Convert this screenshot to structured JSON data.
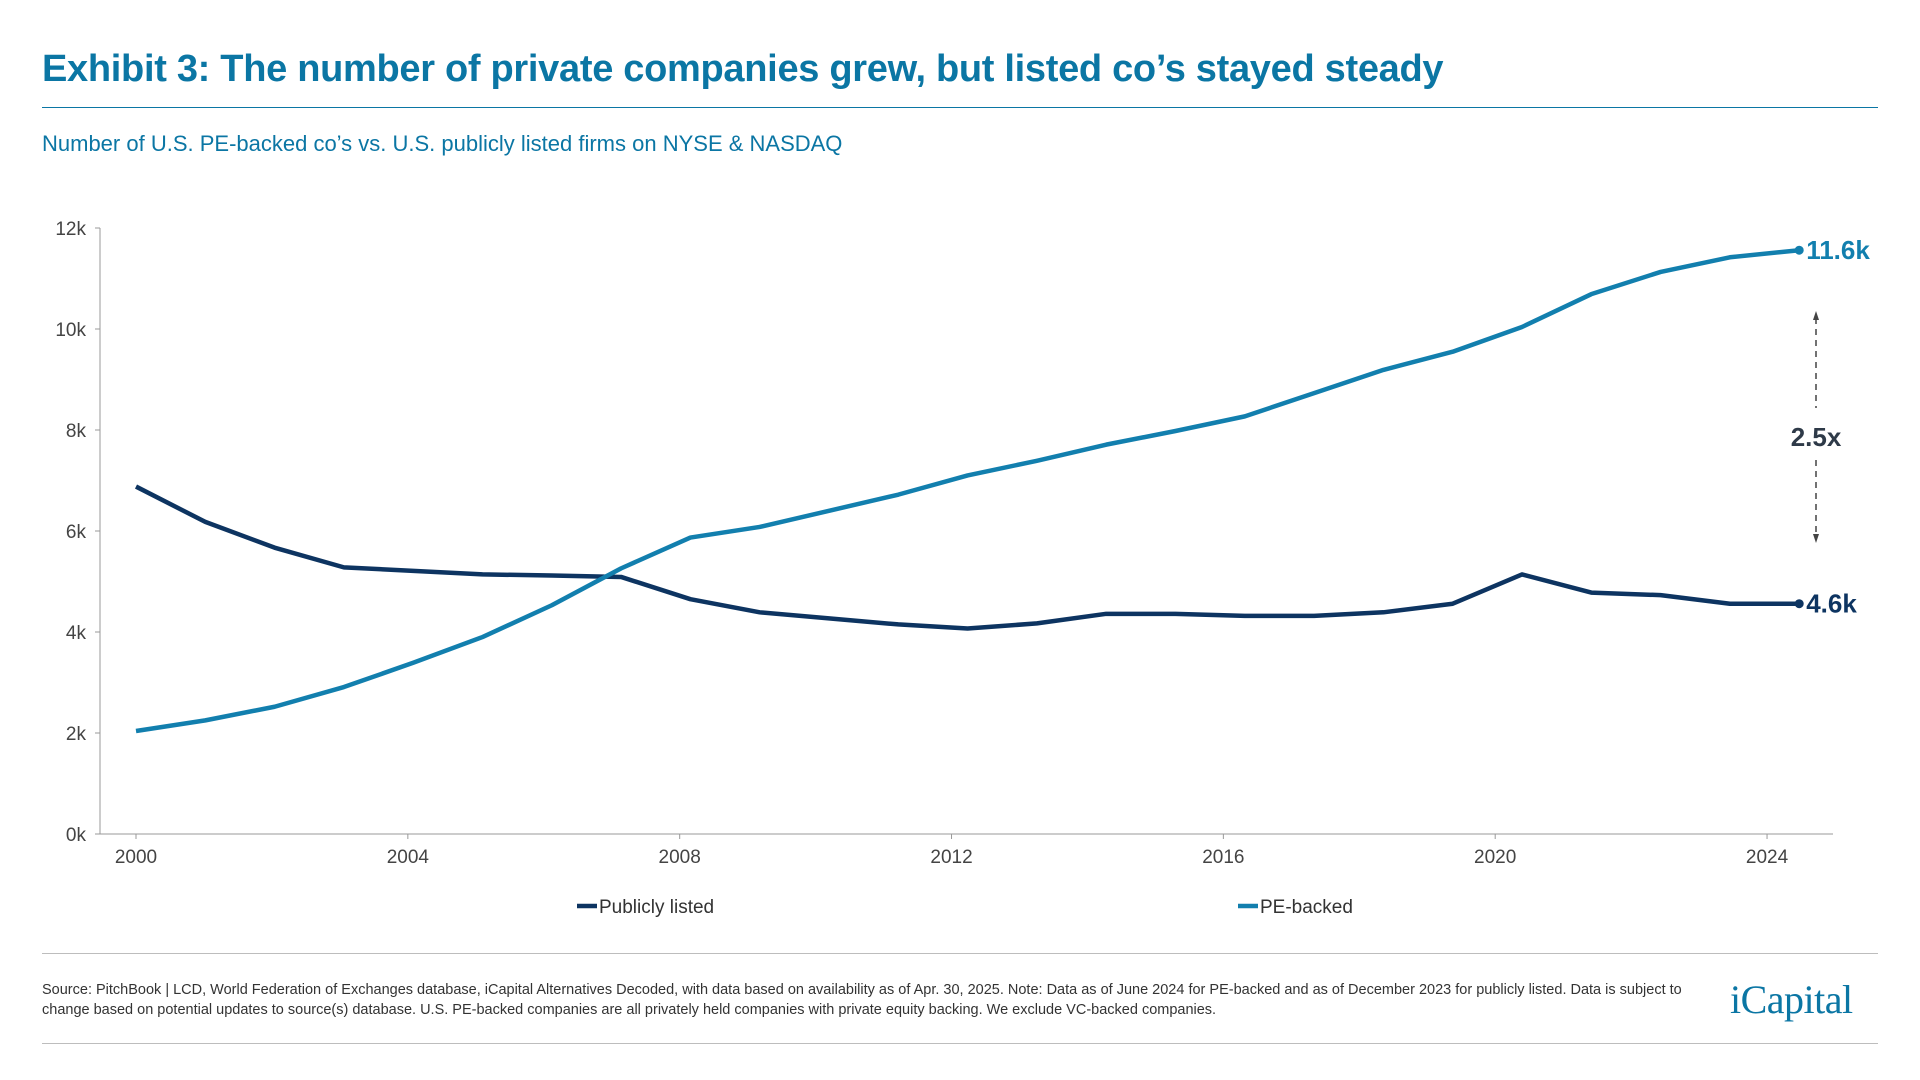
{
  "header": {
    "title": "Exhibit 3: The number of private companies grew, but listed co’s stayed steady",
    "subtitle": "Number of U.S. PE-backed co’s vs. U.S. publicly listed firms on NYSE & NASDAQ"
  },
  "footer": {
    "source": "Source: PitchBook | LCD, World Federation of Exchanges database, iCapital Alternatives Decoded, with data based on availability as of Apr. 30, 2025. Note: Data as of June 2024 for PE-backed and as of December 2023 for publicly listed. Data is subject to change based on potential updates to source(s) database. U.S. PE-backed companies are all privately held companies with private equity backing. We exclude VC-backed companies.",
    "logo": "iCapital"
  },
  "colors": {
    "title": "#0b76a4",
    "publicly_listed": "#0d3461",
    "pe_backed": "#127fae"
  },
  "chart_data": {
    "type": "line",
    "title": "",
    "xlabel": "",
    "ylabel": "",
    "x": [
      2000,
      2001,
      2002,
      2003,
      2004,
      2005,
      2006,
      2007,
      2008,
      2009,
      2010,
      2011,
      2012,
      2013,
      2014,
      2015,
      2016,
      2017,
      2018,
      2019,
      2020,
      2021,
      2022,
      2023,
      2024
    ],
    "xticks": [
      "2000",
      "2004",
      "2008",
      "2012",
      "2016",
      "2020",
      "2024"
    ],
    "yticks": [
      "0k",
      "2k",
      "4k",
      "6k",
      "8k",
      "10k",
      "12k"
    ],
    "ylim": [
      0,
      12000
    ],
    "grid": false,
    "legend_placement": "bottom",
    "series": [
      {
        "name": "Publicly listed",
        "color": "#0d3461",
        "values": [
          6880,
          6180,
          5670,
          5280,
          5210,
          5140,
          5120,
          5090,
          4650,
          4390,
          4270,
          4150,
          4070,
          4170,
          4360,
          4360,
          4320,
          4320,
          4390,
          4560,
          5140,
          4780,
          4730,
          4560,
          4560
        ],
        "end_label": "4.6k"
      },
      {
        "name": "PE-backed",
        "color": "#127fae",
        "values": [
          2040,
          2250,
          2520,
          2910,
          3390,
          3900,
          4530,
          5260,
          5870,
          6080,
          6400,
          6720,
          7100,
          7390,
          7710,
          7980,
          8270,
          8730,
          9190,
          9550,
          10040,
          10690,
          11130,
          11420,
          11560
        ],
        "end_label": "11.6k"
      }
    ],
    "annotation": {
      "label": "2.5x"
    }
  }
}
